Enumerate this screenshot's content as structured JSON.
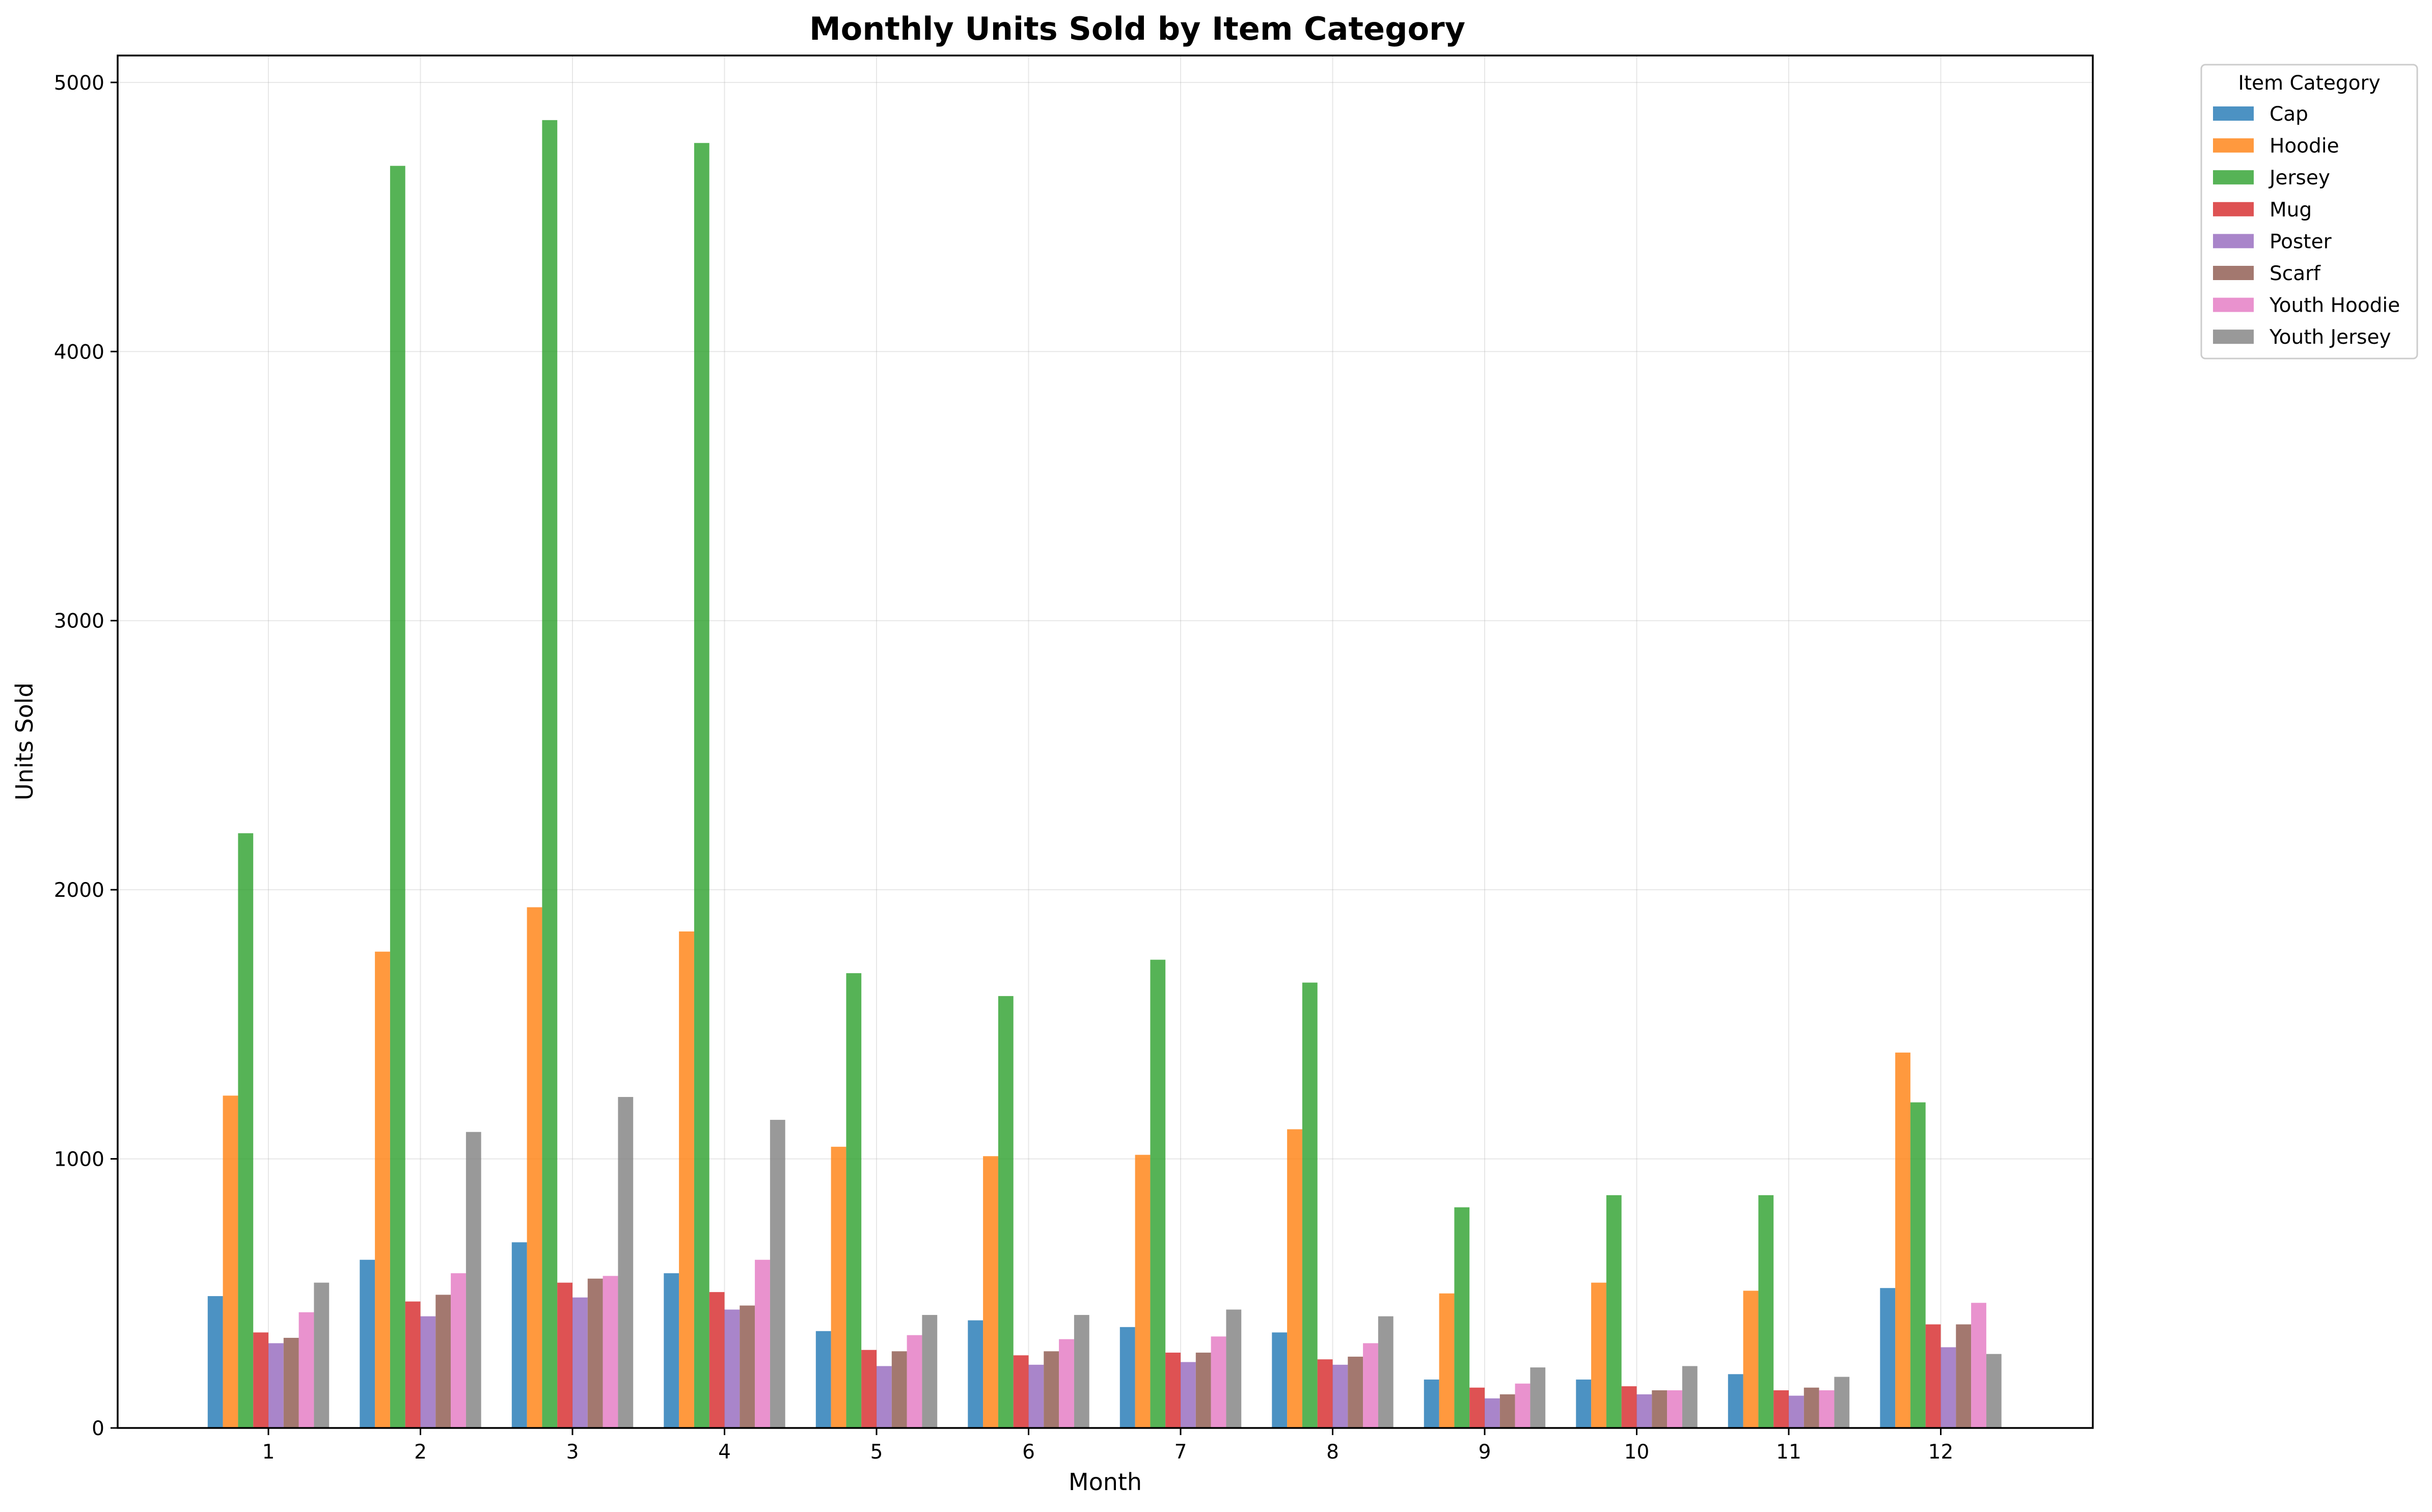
{
  "chart_data": {
    "type": "bar",
    "title": "Monthly Units Sold by Item Category",
    "xlabel": "Month",
    "ylabel": "Units Sold",
    "ylim": [
      0,
      5100
    ],
    "yticks": [
      0,
      1000,
      2000,
      3000,
      4000,
      5000
    ],
    "grid": true,
    "legend_title": "Item Category",
    "legend_position": "outside top-right",
    "categories": [
      "1",
      "2",
      "3",
      "4",
      "5",
      "6",
      "7",
      "8",
      "9",
      "10",
      "11",
      "12"
    ],
    "series": [
      {
        "name": "Cap",
        "color": "#1f77b4",
        "values": [
          490,
          625,
          690,
          575,
          360,
          400,
          375,
          355,
          180,
          180,
          200,
          520
        ]
      },
      {
        "name": "Hoodie",
        "color": "#ff7f0e",
        "values": [
          1235,
          1770,
          1935,
          1845,
          1045,
          1010,
          1015,
          1110,
          500,
          540,
          510,
          1395
        ]
      },
      {
        "name": "Jersey",
        "color": "#2ca02c",
        "values": [
          2210,
          4690,
          4860,
          4775,
          1690,
          1605,
          1740,
          1655,
          820,
          865,
          865,
          1210
        ]
      },
      {
        "name": "Mug",
        "color": "#d62728",
        "values": [
          355,
          470,
          540,
          505,
          290,
          270,
          280,
          255,
          150,
          155,
          140,
          385
        ]
      },
      {
        "name": "Poster",
        "color": "#9467bd",
        "values": [
          315,
          415,
          485,
          440,
          230,
          235,
          245,
          235,
          110,
          125,
          120,
          300
        ]
      },
      {
        "name": "Scarf",
        "color": "#8c564b",
        "values": [
          335,
          495,
          555,
          455,
          285,
          285,
          280,
          265,
          125,
          140,
          150,
          385
        ]
      },
      {
        "name": "Youth Hoodie",
        "color": "#e377c2",
        "values": [
          430,
          575,
          565,
          625,
          345,
          330,
          340,
          315,
          165,
          140,
          140,
          465
        ]
      },
      {
        "name": "Youth Jersey",
        "color": "#7f7f7f",
        "values": [
          540,
          1100,
          1230,
          1145,
          420,
          420,
          440,
          415,
          225,
          230,
          190,
          275
        ]
      }
    ]
  }
}
